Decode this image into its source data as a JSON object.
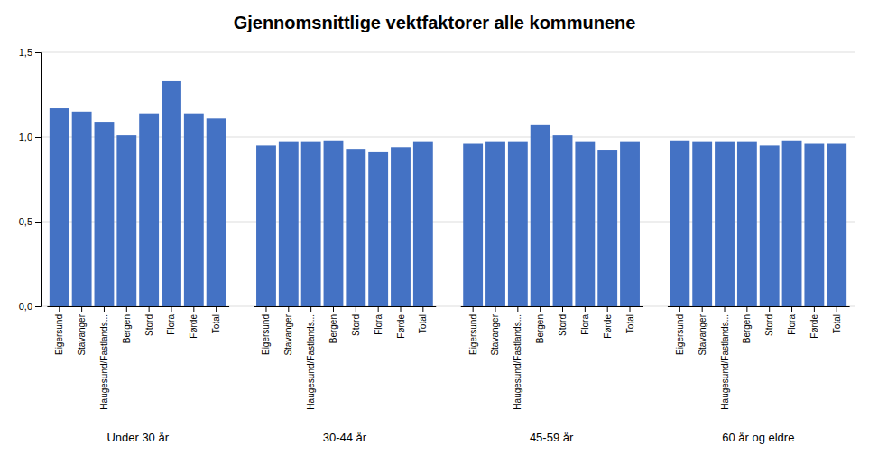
{
  "chart_data": {
    "type": "bar",
    "title": "Gjennomsnittlige vektfaktorer alle kommunene",
    "groups": [
      "Under 30 år",
      "30-44 år",
      "45-59 år",
      "60 år og eldre"
    ],
    "categories": [
      "Eigersund",
      "Stavanger",
      "Haugesund/Fastlands...",
      "Bergen",
      "Stord",
      "Flora",
      "Førde",
      "Total"
    ],
    "values": [
      [
        1.17,
        1.15,
        1.09,
        1.01,
        1.14,
        1.33,
        1.14,
        1.11
      ],
      [
        0.95,
        0.97,
        0.97,
        0.98,
        0.93,
        0.91,
        0.94,
        0.97
      ],
      [
        0.96,
        0.97,
        0.97,
        1.07,
        1.01,
        0.97,
        0.92,
        0.97
      ],
      [
        0.98,
        0.97,
        0.97,
        0.97,
        0.95,
        0.98,
        0.96,
        0.96
      ]
    ],
    "color": "#4472C4",
    "ylim": [
      0,
      1.5
    ],
    "yticks": [
      {
        "value": 0.0,
        "label": "0,0"
      },
      {
        "value": 0.5,
        "label": "0,5"
      },
      {
        "value": 1.0,
        "label": "1,0"
      },
      {
        "value": 1.5,
        "label": "1,5"
      }
    ],
    "grid": true
  }
}
